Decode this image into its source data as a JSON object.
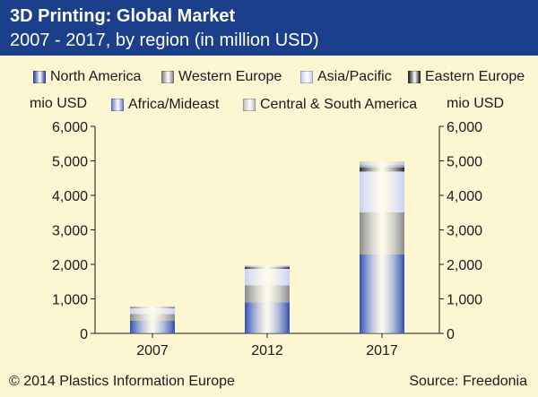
{
  "header": {
    "title": "3D Printing: Global Market",
    "subtitle": "2007 - 2017, by region (in million USD)"
  },
  "legend": [
    {
      "label": "North America",
      "color": "#2f4fb3"
    },
    {
      "label": "Western Europe",
      "color": "#8a8a8a"
    },
    {
      "label": "Asia/Pacific",
      "color": "#c9d1f4"
    },
    {
      "label": "Eastern Europe",
      "color": "#2a2a2a"
    },
    {
      "label": "Africa/Mideast",
      "color": "#6f86d8"
    },
    {
      "label": "Central & South America",
      "color": "#c2c2c2"
    }
  ],
  "axis_units": {
    "left": "mio USD",
    "right": "mio USD"
  },
  "footer": {
    "copyright": "© 2014 Plastics Information Europe",
    "source": "Source: Freedonia"
  },
  "chart_data": {
    "type": "bar",
    "stacked": true,
    "categories": [
      "2007",
      "2012",
      "2017"
    ],
    "ylim": [
      0,
      6000
    ],
    "yticks": [
      0,
      1000,
      2000,
      3000,
      4000,
      5000,
      6000
    ],
    "ytick_labels": [
      "0",
      "1,000",
      "2,000",
      "3,000",
      "4,000",
      "5,000",
      "6,000"
    ],
    "series": [
      {
        "name": "North America",
        "values": [
          370,
          900,
          2290
        ]
      },
      {
        "name": "Western Europe",
        "values": [
          190,
          490,
          1220
        ]
      },
      {
        "name": "Asia/Pacific",
        "values": [
          180,
          480,
          1180
        ]
      },
      {
        "name": "Eastern Europe",
        "values": [
          20,
          50,
          120
        ]
      },
      {
        "name": "Africa/Mideast",
        "values": [
          10,
          20,
          60
        ]
      },
      {
        "name": "Central & South America",
        "values": [
          10,
          30,
          110
        ]
      }
    ]
  }
}
